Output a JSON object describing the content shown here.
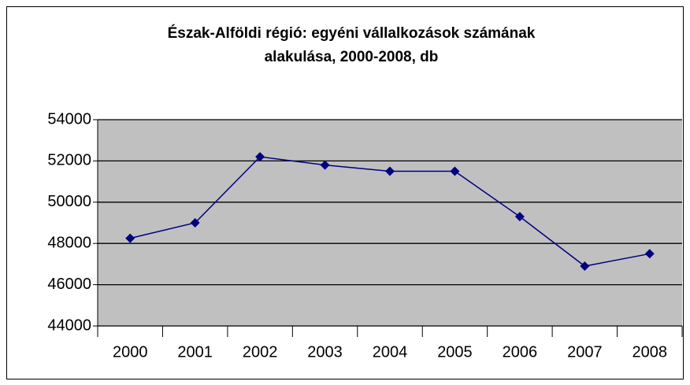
{
  "chart_data": {
    "type": "line",
    "title": [
      "Észak-Alföldi régió: egyéni vállalkozások számának",
      "alakulása, 2000-2008, db"
    ],
    "categories": [
      "2000",
      "2001",
      "2002",
      "2003",
      "2004",
      "2005",
      "2006",
      "2007",
      "2008"
    ],
    "series": [
      {
        "name": "egyéni vállalkozások",
        "color": "#000080",
        "values": [
          48250,
          49000,
          52200,
          51800,
          51500,
          51500,
          49300,
          46900,
          47500
        ]
      }
    ],
    "ylim": [
      44000,
      54000
    ],
    "yticks": [
      44000,
      46000,
      48000,
      50000,
      52000,
      54000
    ],
    "grid": true,
    "legend": false
  }
}
